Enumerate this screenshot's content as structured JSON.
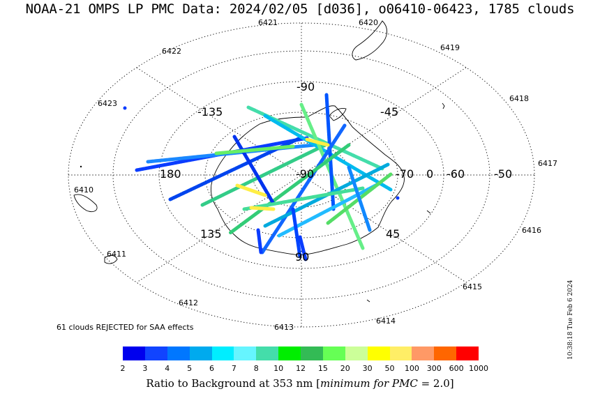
{
  "title": "NOAA-21 OMPS LP PMC Data: 2024/02/05 [d036], o06410-06423, 1785 clouds",
  "map": {
    "longitude_labels": [
      "-90",
      "-135",
      "-45",
      "180",
      "-90",
      "-70",
      "0",
      "-60",
      "-50",
      "135",
      "45",
      "90"
    ],
    "orbit_labels": [
      "6421",
      "6420",
      "6419",
      "6418",
      "6417",
      "6416",
      "6415",
      "6414",
      "6413",
      "6412",
      "6411",
      "6410",
      "6423",
      "6422"
    ]
  },
  "rejected_text": "61 clouds REJECTED for SAA effects",
  "colorbar": {
    "colors": [
      "#0000ee",
      "#1144ff",
      "#0077ff",
      "#00aaee",
      "#00eeff",
      "#66f5ff",
      "#44ddaa",
      "#00ee00",
      "#33bb55",
      "#66ff55",
      "#ccff99",
      "#ffff00",
      "#ffee66",
      "#ff9966",
      "#ff6600",
      "#ff0000"
    ],
    "ticks": [
      "2",
      "3",
      "4",
      "5",
      "6",
      "7",
      "8",
      "10",
      "12",
      "15",
      "20",
      "30",
      "50",
      "100",
      "300",
      "600",
      "1000"
    ],
    "label_prefix": "Ratio to Background at 353 nm [",
    "label_italic": "minimum for PMC",
    "label_suffix": " = 2.0]"
  },
  "timestamp": "10:38:18 Tue Feb  6 2024",
  "chart_data": {
    "type": "map",
    "projection": "south polar stereographic",
    "orbits": [
      "6410",
      "6411",
      "6412",
      "6413",
      "6414",
      "6415",
      "6416",
      "6417",
      "6418",
      "6419",
      "6420",
      "6421",
      "6422",
      "6423"
    ],
    "total_clouds": 1785,
    "rejected_clouds": 61,
    "date": "2024/02/05",
    "day_of_year": "d036",
    "wavelength_nm": 353,
    "minimum_ratio": 2.0
  }
}
